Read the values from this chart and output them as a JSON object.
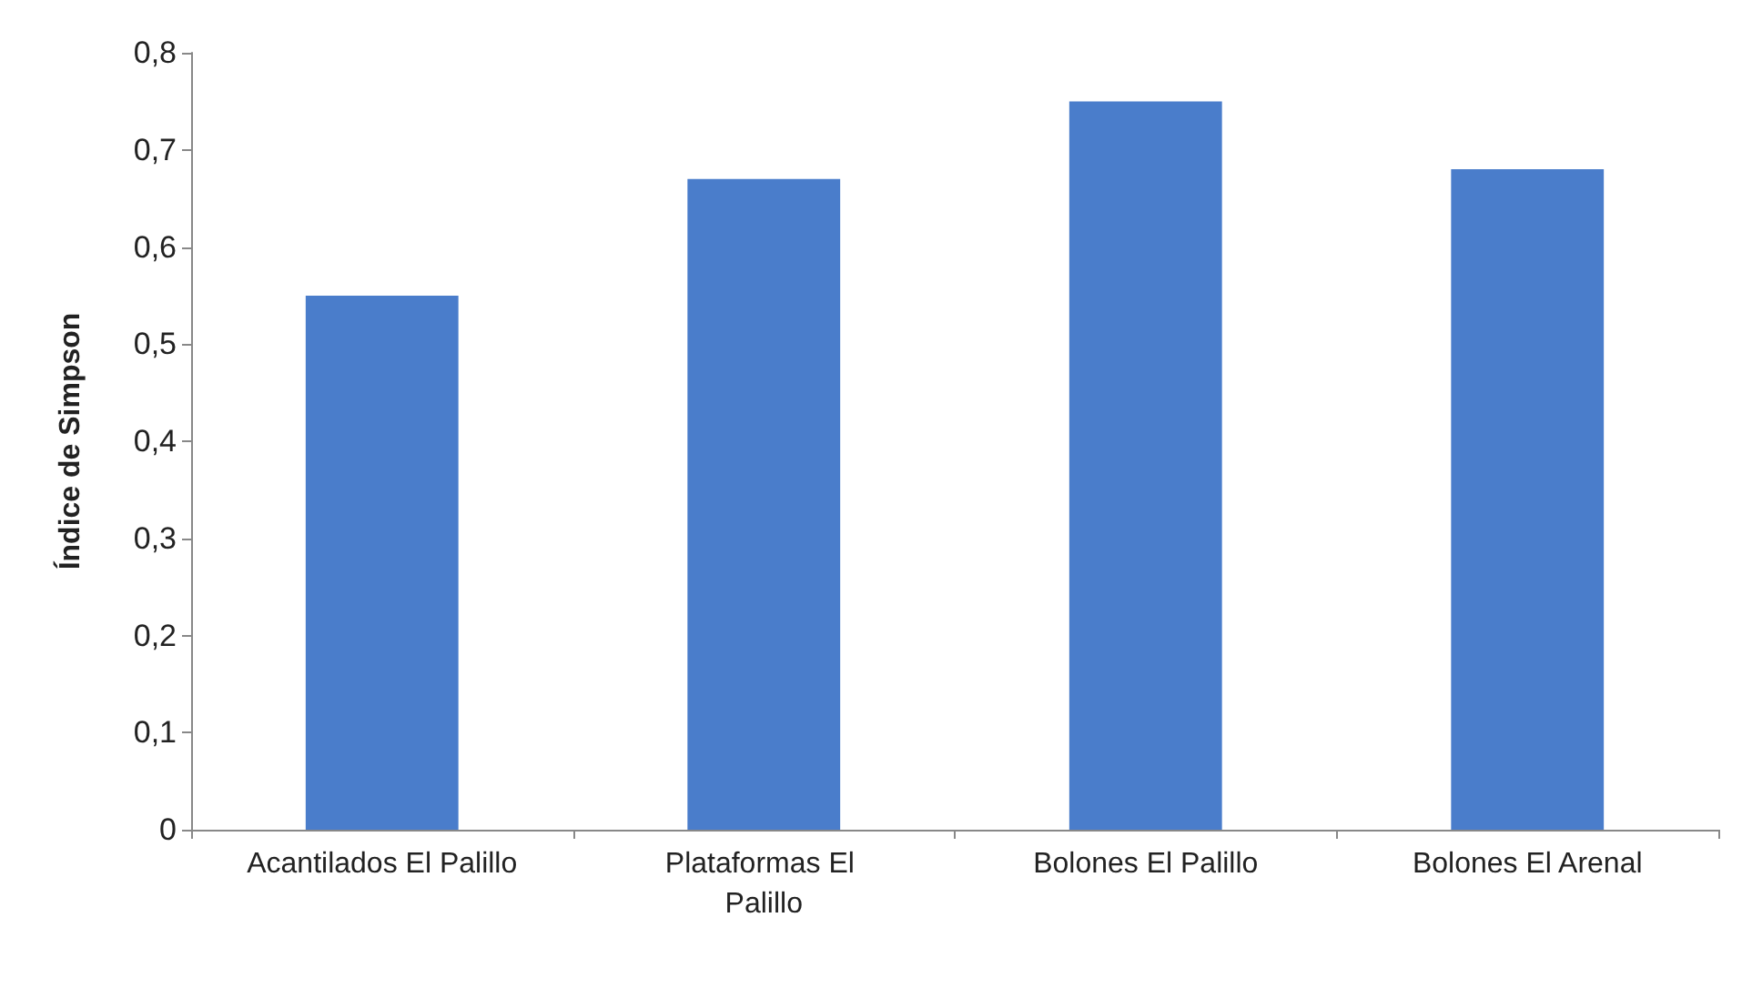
{
  "chart_data": {
    "type": "bar",
    "ylabel": "Índice de Simpson",
    "categories": [
      "Acantilados El Palillo",
      "Plataformas El Palillo",
      "Bolones El Palillo",
      "Bolones El Arenal"
    ],
    "values": [
      0.55,
      0.67,
      0.75,
      0.68
    ],
    "color": "#4a7dcb",
    "ylim": [
      0,
      0.8
    ],
    "yticks": [
      {
        "value": 0,
        "label": "0"
      },
      {
        "value": 0.1,
        "label": "0,1"
      },
      {
        "value": 0.2,
        "label": "0,2"
      },
      {
        "value": 0.3,
        "label": "0,3"
      },
      {
        "value": 0.4,
        "label": "0,4"
      },
      {
        "value": 0.5,
        "label": "0,5"
      },
      {
        "value": 0.6,
        "label": "0,6"
      },
      {
        "value": 0.7,
        "label": "0,7"
      },
      {
        "value": 0.8,
        "label": "0,8"
      }
    ],
    "grid": false
  }
}
